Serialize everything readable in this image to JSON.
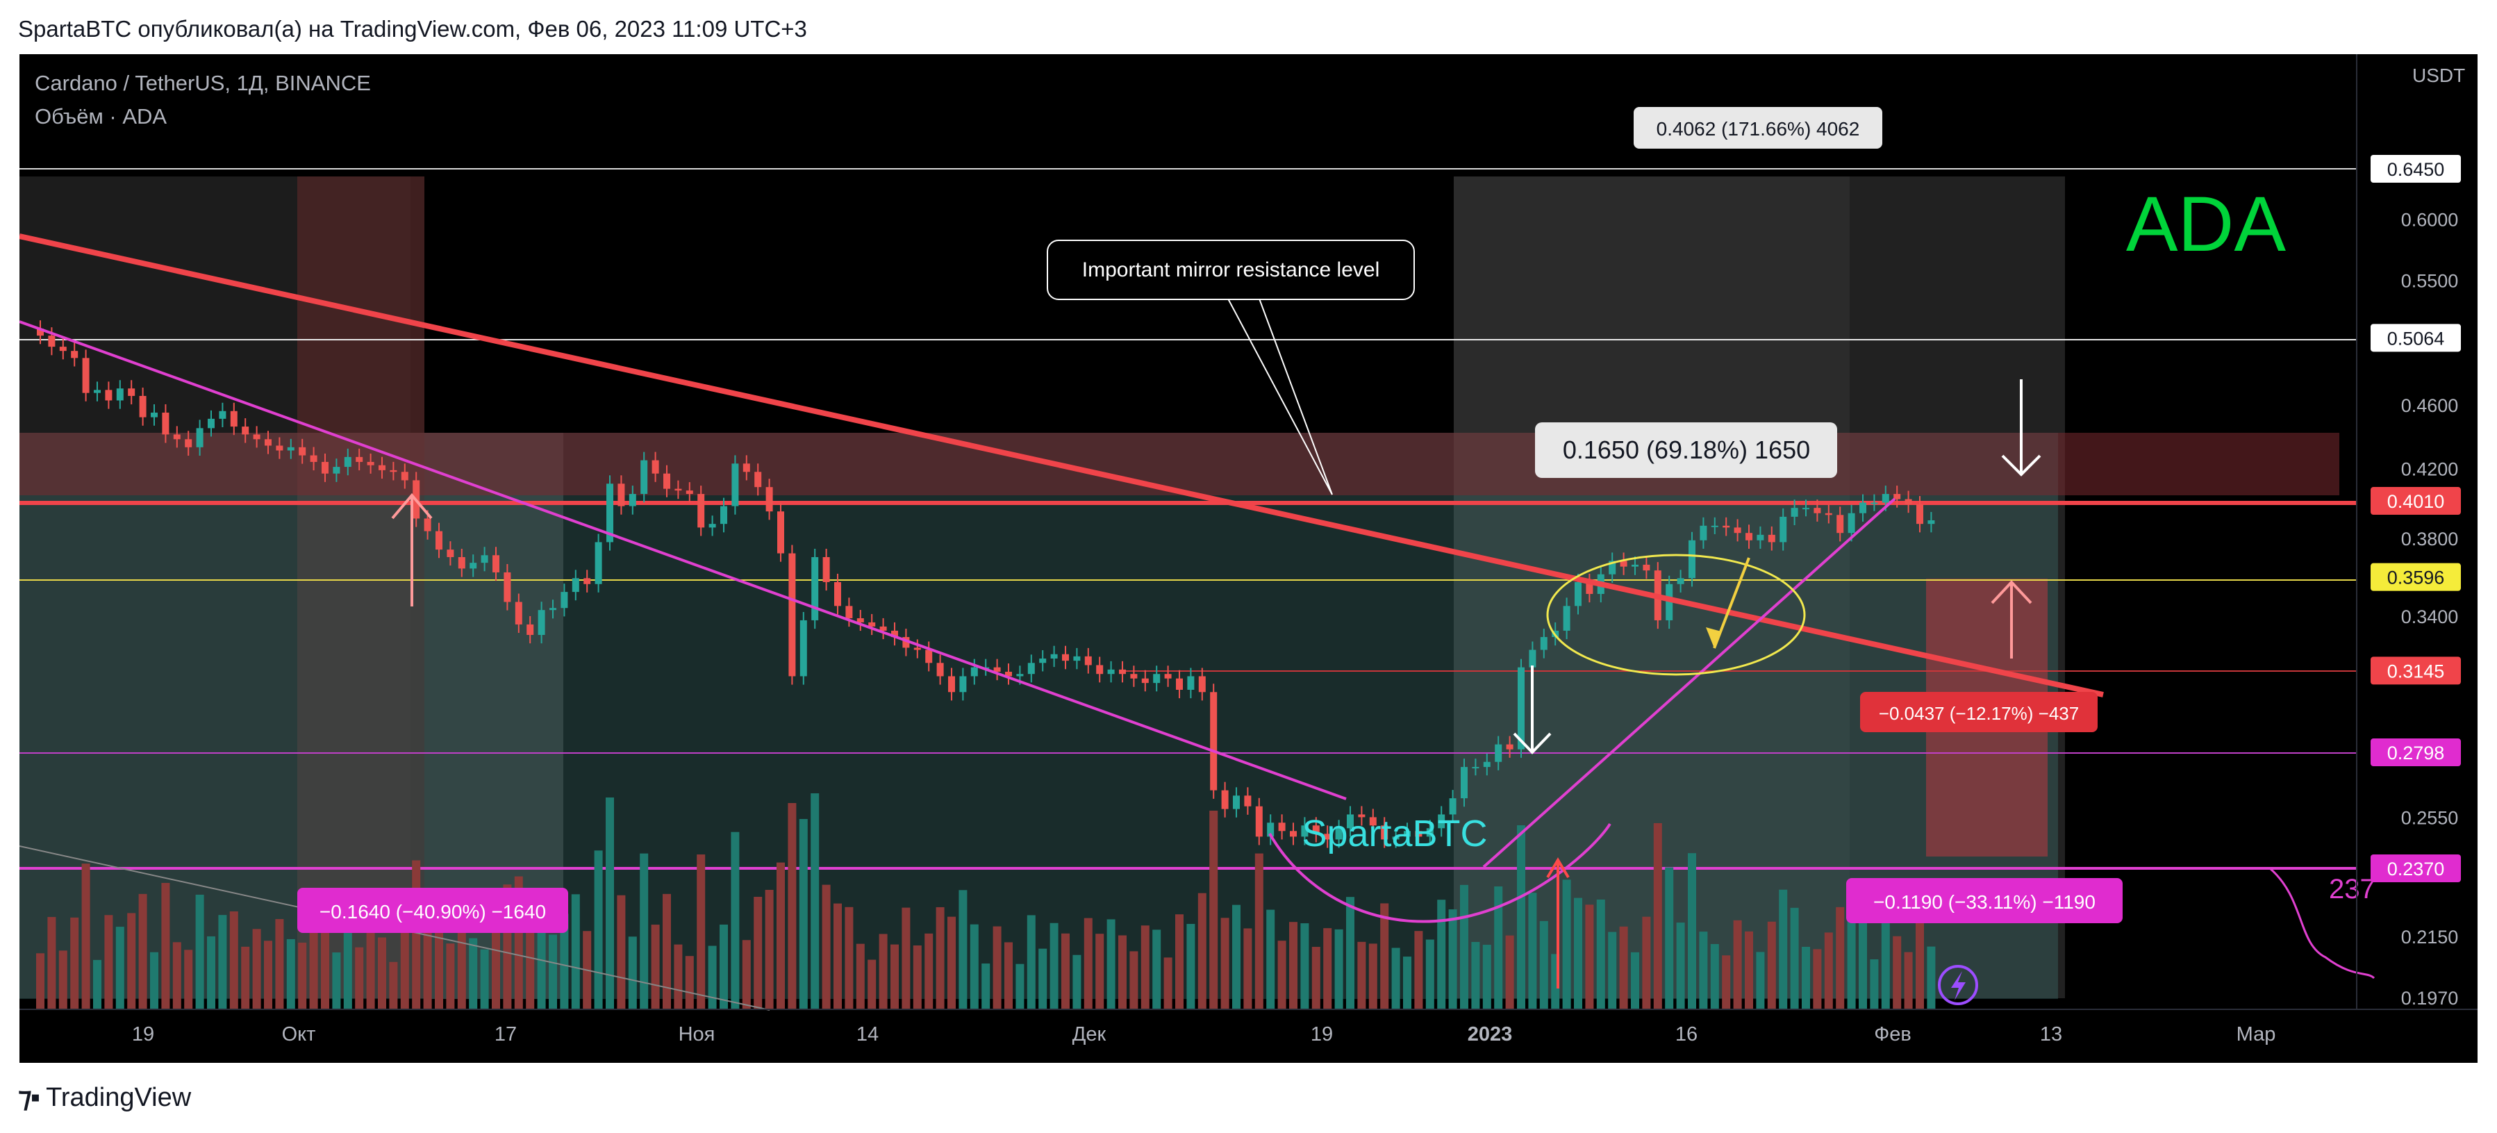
{
  "header": {
    "attribution": "SpartaBTC опубликовал(а) на TradingView.com, Фев 06, 2023 11:09 UTC+3"
  },
  "chart_info": {
    "symbol_line": "Cardano / TetherUS, 1Д, BINANCE",
    "volume_line": "Объём · ADA",
    "currency": "USDT",
    "ticker_watermark": "ADA",
    "author_watermark": "SpartaBTC"
  },
  "annotations": {
    "top_measure": "0.4062 (171.66%) 4062",
    "resistance_note": "Important mirror resistance level",
    "mid_measure": "0.1650 (69.18%) 1650",
    "drop_left": "−0.1640 (−40.90%) −1640",
    "drop_right": "−0.1190 (−33.11%) −1190",
    "drop_red": "−0.0437 (−12.17%) −437",
    "side_value": "237"
  },
  "footer": {
    "brand": "TradingView"
  },
  "colors": {
    "up": "#26a69a",
    "down": "#ef5350",
    "volume_up": "#1f7a6f",
    "volume_down": "#8a3a38",
    "resistance": "#f0444a",
    "trendline": "#e040d0",
    "watermark_green": "#00d43a",
    "author_cyan": "#39e0e0",
    "yellow": "#f2e94e"
  },
  "chart_data": {
    "type": "candlestick",
    "title": "Cardano / TetherUS, 1Д, BINANCE",
    "ylabel": "USDT",
    "y_scale": "log",
    "ylim": [
      0.197,
      0.72
    ],
    "x_tick_labels": [
      "19",
      "Окт",
      "17",
      "Ноя",
      "14",
      "Дек",
      "19",
      "2023",
      "16",
      "Фев",
      "13",
      "Мар"
    ],
    "y_tick_labels": [
      "0.6000",
      "0.5500",
      "0.4600",
      "0.4200",
      "0.3800",
      "0.3400",
      "0.2550",
      "0.2150",
      "0.1970"
    ],
    "price_markers": [
      {
        "label": "0.6450",
        "value": 0.645,
        "style": "white"
      },
      {
        "label": "0.5064",
        "value": 0.5064,
        "style": "white"
      },
      {
        "label": "0.4010",
        "value": 0.401,
        "style": "red"
      },
      {
        "label": "0.3596",
        "value": 0.3596,
        "style": "yellow"
      },
      {
        "label": "0.3145",
        "value": 0.3145,
        "style": "red"
      },
      {
        "label": "0.2798",
        "value": 0.2798,
        "style": "magenta"
      },
      {
        "label": "0.2370",
        "value": 0.237,
        "style": "magenta"
      }
    ],
    "series": [
      {
        "name": "ADA/USDT",
        "close": [
          0.508,
          0.5,
          0.497,
          0.492,
          0.468,
          0.47,
          0.463,
          0.471,
          0.466,
          0.452,
          0.455,
          0.441,
          0.438,
          0.433,
          0.445,
          0.451,
          0.456,
          0.446,
          0.441,
          0.438,
          0.434,
          0.431,
          0.433,
          0.428,
          0.424,
          0.417,
          0.421,
          0.427,
          0.424,
          0.422,
          0.419,
          0.418,
          0.413,
          0.391,
          0.384,
          0.374,
          0.37,
          0.364,
          0.367,
          0.371,
          0.362,
          0.347,
          0.336,
          0.331,
          0.343,
          0.344,
          0.352,
          0.359,
          0.356,
          0.378,
          0.411,
          0.398,
          0.405,
          0.425,
          0.417,
          0.408,
          0.407,
          0.405,
          0.386,
          0.388,
          0.398,
          0.423,
          0.418,
          0.409,
          0.395,
          0.372,
          0.312,
          0.338,
          0.37,
          0.357,
          0.345,
          0.339,
          0.337,
          0.335,
          0.333,
          0.33,
          0.325,
          0.324,
          0.318,
          0.312,
          0.305,
          0.312,
          0.316,
          0.316,
          0.314,
          0.312,
          0.313,
          0.318,
          0.32,
          0.322,
          0.319,
          0.321,
          0.317,
          0.313,
          0.315,
          0.313,
          0.311,
          0.309,
          0.313,
          0.311,
          0.306,
          0.312,
          0.305,
          0.265,
          0.258,
          0.263,
          0.259,
          0.248,
          0.253,
          0.25,
          0.248,
          0.252,
          0.249,
          0.247,
          0.251,
          0.256,
          0.255,
          0.252,
          0.247,
          0.248,
          0.25,
          0.248,
          0.251,
          0.256,
          0.262,
          0.274,
          0.274,
          0.276,
          0.283,
          0.281,
          0.316,
          0.324,
          0.33,
          0.333,
          0.345,
          0.357,
          0.351,
          0.361,
          0.368,
          0.365,
          0.366,
          0.363,
          0.338,
          0.356,
          0.359,
          0.379,
          0.387,
          0.387,
          0.386,
          0.383,
          0.379,
          0.382,
          0.378,
          0.392,
          0.397,
          0.397,
          0.394,
          0.393,
          0.383,
          0.394,
          0.4,
          0.4,
          0.405,
          0.402,
          0.399,
          0.388,
          0.39
        ]
      },
      {
        "name": "Объём"
      }
    ]
  }
}
